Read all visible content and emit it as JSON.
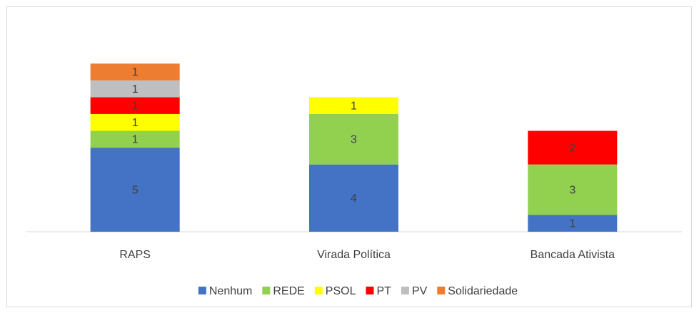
{
  "chart_data": {
    "type": "stacked_bar",
    "categories": [
      "RAPS",
      "Virada Política",
      "Bancada Ativista"
    ],
    "series": [
      {
        "name": "Nenhum",
        "color": "#4472c4",
        "values": [
          5,
          4,
          1
        ]
      },
      {
        "name": "REDE",
        "color": "#92d050",
        "values": [
          1,
          3,
          3
        ]
      },
      {
        "name": "PSOL",
        "color": "#ffff00",
        "values": [
          1,
          1,
          null
        ]
      },
      {
        "name": "PT",
        "color": "#ff0000",
        "values": [
          1,
          null,
          2
        ]
      },
      {
        "name": "PV",
        "color": "#bfbfbf",
        "values": [
          1,
          null,
          null
        ]
      },
      {
        "name": "Solidariedade",
        "color": "#ed7d31",
        "values": [
          1,
          null,
          null
        ]
      }
    ],
    "ylim": [
      0,
      12
    ],
    "legend": "bottom"
  }
}
